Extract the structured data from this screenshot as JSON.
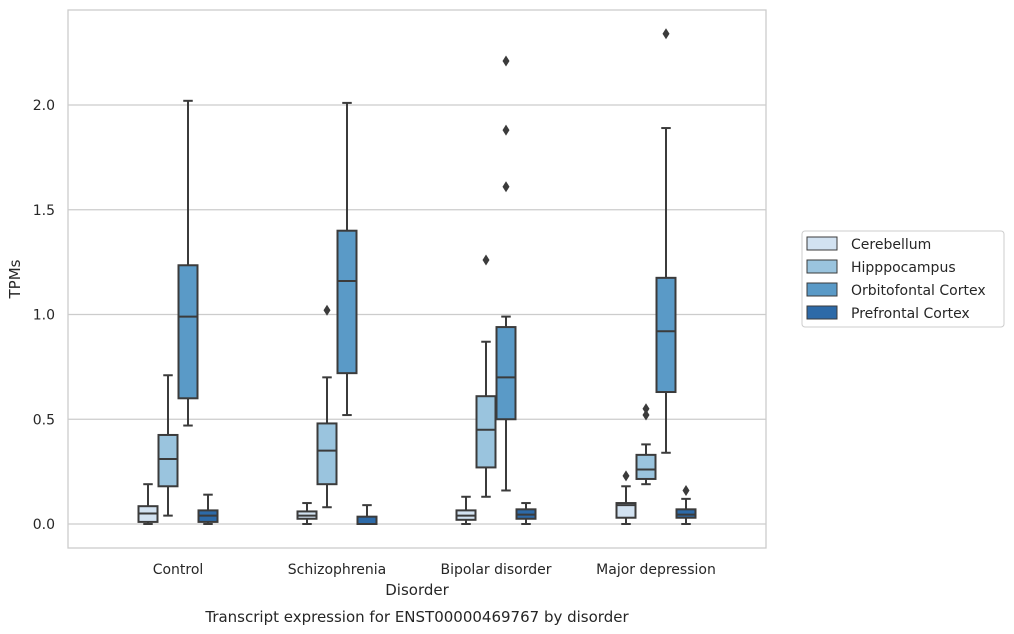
{
  "chart_data": {
    "type": "boxplot",
    "xlabel": "Disorder",
    "ylabel": "TPMs",
    "caption": "Transcript expression for ENST00000469767 by disorder",
    "categories": [
      "Control",
      "Schizophrenia",
      "Bipolar disorder",
      "Major depression"
    ],
    "yticks": [
      "0.0",
      "0.5",
      "1.0",
      "1.5",
      "2.0"
    ],
    "ylim": [
      -0.11,
      2.46
    ],
    "grid": true,
    "legend_position": "right",
    "series": [
      {
        "name": "Cerebellum",
        "color": "#d2e2f1",
        "boxes": [
          {
            "whislo": 0.0,
            "q1": 0.01,
            "med": 0.05,
            "q3": 0.085,
            "whishi": 0.19,
            "fliers": []
          },
          {
            "whislo": 0.0,
            "q1": 0.025,
            "med": 0.04,
            "q3": 0.06,
            "whishi": 0.1,
            "fliers": []
          },
          {
            "whislo": 0.0,
            "q1": 0.02,
            "med": 0.04,
            "q3": 0.065,
            "whishi": 0.13,
            "fliers": []
          },
          {
            "whislo": 0.0,
            "q1": 0.03,
            "med": 0.09,
            "q3": 0.1,
            "whishi": 0.18,
            "fliers": [
              0.23
            ]
          }
        ]
      },
      {
        "name": "Hipppocampus",
        "color": "#9ac4de",
        "boxes": [
          {
            "whislo": 0.04,
            "q1": 0.18,
            "med": 0.31,
            "q3": 0.425,
            "whishi": 0.71,
            "fliers": []
          },
          {
            "whislo": 0.08,
            "q1": 0.19,
            "med": 0.35,
            "q3": 0.48,
            "whishi": 0.7,
            "fliers": [
              1.02
            ]
          },
          {
            "whislo": 0.13,
            "q1": 0.27,
            "med": 0.45,
            "q3": 0.61,
            "whishi": 0.87,
            "fliers": [
              1.26
            ]
          },
          {
            "whislo": 0.19,
            "q1": 0.215,
            "med": 0.26,
            "q3": 0.33,
            "whishi": 0.38,
            "fliers": [
              0.52,
              0.55
            ]
          }
        ]
      },
      {
        "name": "Orbitofontal Cortex",
        "color": "#5a9ac7",
        "boxes": [
          {
            "whislo": 0.47,
            "q1": 0.6,
            "med": 0.99,
            "q3": 1.235,
            "whishi": 2.02,
            "fliers": []
          },
          {
            "whislo": 0.52,
            "q1": 0.72,
            "med": 1.16,
            "q3": 1.4,
            "whishi": 2.01,
            "fliers": []
          },
          {
            "whislo": 0.16,
            "q1": 0.5,
            "med": 0.7,
            "q3": 0.94,
            "whishi": 0.99,
            "fliers": [
              1.61,
              1.88,
              2.21
            ]
          },
          {
            "whislo": 0.34,
            "q1": 0.63,
            "med": 0.92,
            "q3": 1.175,
            "whishi": 1.89,
            "fliers": [
              2.34
            ]
          }
        ]
      },
      {
        "name": "Prefrontal Cortex",
        "color": "#2d6aa8",
        "boxes": [
          {
            "whislo": 0.0,
            "q1": 0.01,
            "med": 0.04,
            "q3": 0.065,
            "whishi": 0.14,
            "fliers": []
          },
          {
            "whislo": 0.0,
            "q1": 0.0,
            "med": 0.0,
            "q3": 0.035,
            "whishi": 0.09,
            "fliers": []
          },
          {
            "whislo": 0.0,
            "q1": 0.025,
            "med": 0.045,
            "q3": 0.07,
            "whishi": 0.1,
            "fliers": []
          },
          {
            "whislo": 0.0,
            "q1": 0.03,
            "med": 0.045,
            "q3": 0.07,
            "whishi": 0.12,
            "fliers": [
              0.16
            ]
          }
        ]
      }
    ]
  }
}
